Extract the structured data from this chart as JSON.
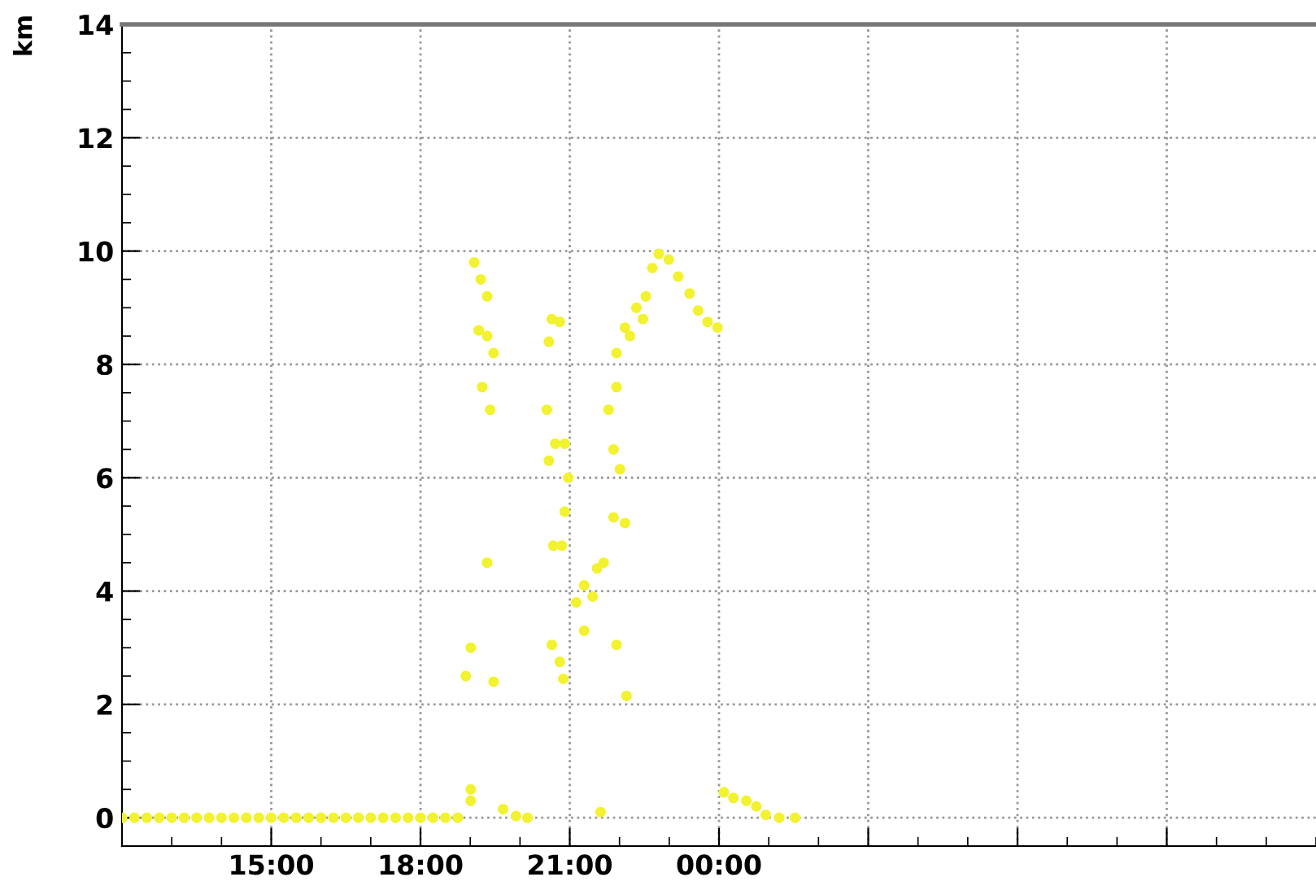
{
  "chart_data": {
    "type": "scatter",
    "ylabel": "km",
    "xlim": [
      12,
      36
    ],
    "ylim": [
      -0.5,
      14
    ],
    "xticks": [
      {
        "value": 15,
        "label": "15:00"
      },
      {
        "value": 18,
        "label": "18:00"
      },
      {
        "value": 21,
        "label": "21:00"
      },
      {
        "value": 24,
        "label": "00:00"
      },
      {
        "value": 27,
        "label": null
      },
      {
        "value": 30,
        "label": null
      },
      {
        "value": 33,
        "label": null
      }
    ],
    "yticks": [
      0,
      2,
      4,
      6,
      8,
      10,
      12,
      14
    ],
    "grid": true,
    "marker": "circle",
    "series": [
      {
        "color": "#f2f230",
        "x": [
          12.0,
          12.25,
          12.5,
          12.75,
          13.0,
          13.25,
          13.5,
          13.75,
          14.0,
          14.25,
          14.5,
          14.75,
          15.0,
          15.25,
          15.5,
          15.75,
          16.0,
          16.25,
          16.5,
          16.75,
          17.0,
          17.25,
          17.5,
          17.75,
          18.0,
          18.25,
          18.5,
          18.75,
          19.01,
          19.01,
          19.08,
          19.21,
          19.34,
          19.17,
          19.34,
          19.47,
          19.24,
          19.4,
          18.91,
          19.47,
          19.01,
          19.34,
          19.66,
          19.92,
          20.15,
          20.64,
          20.8,
          20.58,
          20.54,
          20.71,
          20.58,
          20.9,
          20.97,
          20.9,
          20.84,
          20.67,
          20.64,
          20.8,
          20.87,
          21.62,
          21.13,
          21.29,
          21.46,
          21.29,
          21.55,
          21.68,
          21.88,
          22.11,
          21.94,
          22.14,
          21.78,
          21.88,
          22.01,
          21.94,
          21.94,
          22.11,
          22.34,
          22.53,
          22.66,
          22.79,
          22.99,
          23.18,
          23.41,
          23.58,
          23.77,
          23.97,
          22.21,
          22.47,
          24.1,
          24.29,
          24.55,
          24.75,
          24.94,
          25.21,
          25.53
        ],
        "values": [
          0,
          0,
          0,
          0,
          0,
          0,
          0,
          0,
          0,
          0,
          0,
          0,
          0,
          0,
          0,
          0,
          0,
          0,
          0,
          0,
          0,
          0,
          0,
          0,
          0,
          0,
          0,
          0,
          0.3,
          0.5,
          9.8,
          9.5,
          9.2,
          8.6,
          8.5,
          8.2,
          7.6,
          7.2,
          2.5,
          2.4,
          3.0,
          4.5,
          0.15,
          0.03,
          0,
          8.8,
          8.75,
          8.4,
          7.2,
          6.6,
          6.3,
          6.6,
          6.0,
          5.4,
          4.8,
          4.8,
          3.05,
          2.75,
          2.45,
          0.1,
          3.8,
          4.1,
          3.9,
          3.3,
          4.4,
          4.5,
          5.3,
          5.2,
          3.05,
          2.15,
          7.2,
          6.5,
          6.15,
          7.6,
          8.2,
          8.65,
          9.0,
          9.2,
          9.7,
          9.95,
          9.85,
          9.55,
          9.25,
          8.95,
          8.75,
          8.65,
          8.5,
          8.8,
          0.45,
          0.35,
          0.3,
          0.2,
          0.05,
          0,
          0
        ]
      }
    ]
  }
}
